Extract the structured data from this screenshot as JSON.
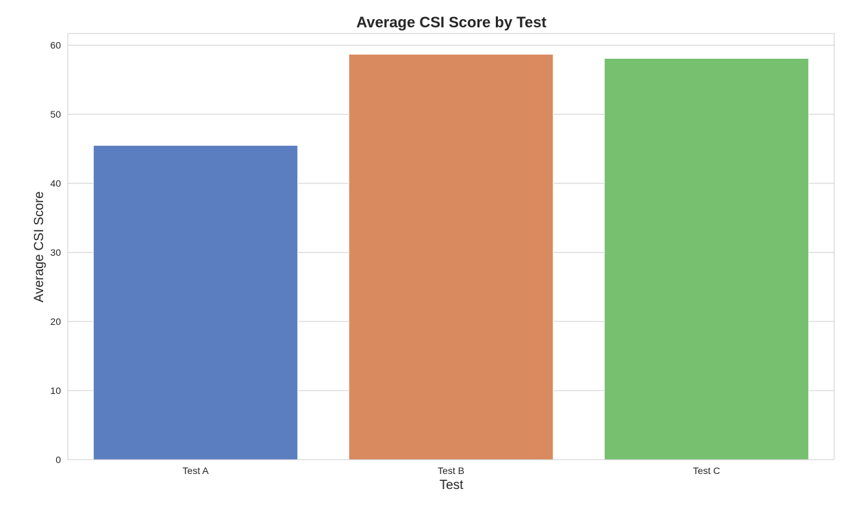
{
  "chart_data": {
    "type": "bar",
    "title": "Average CSI Score by Test",
    "xlabel": "Test",
    "ylabel": "Average CSI Score",
    "categories": [
      "Test A",
      "Test B",
      "Test C"
    ],
    "values": [
      45.5,
      58.7,
      58.1
    ],
    "colors": [
      "#5b7ec0",
      "#d98a5e",
      "#77c070"
    ],
    "ylim": [
      0,
      61.7
    ],
    "yticks": [
      0,
      10,
      20,
      30,
      40,
      50,
      60
    ],
    "grid": true,
    "legend": "none"
  }
}
